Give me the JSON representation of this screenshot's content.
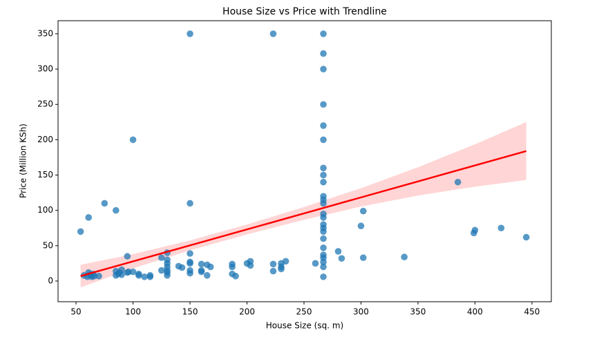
{
  "chart_data": {
    "type": "scatter",
    "title": "House Size vs Price with Trendline",
    "xlabel": "House Size (sq. m)",
    "ylabel": "Price (Million KSh)",
    "color": "#1f77b4",
    "x": [
      54,
      57,
      60,
      61,
      61,
      62,
      63,
      64,
      65,
      66,
      70,
      75,
      85,
      85,
      85,
      87,
      88,
      90,
      90,
      95,
      95,
      96,
      100,
      100,
      105,
      105,
      110,
      115,
      115,
      125,
      125,
      130,
      130,
      130,
      130,
      130,
      130,
      130,
      140,
      143,
      150,
      150,
      150,
      150,
      150,
      150,
      150,
      160,
      160,
      160,
      165,
      165,
      168,
      187,
      187,
      187,
      190,
      200,
      203,
      203,
      223,
      223,
      223,
      230,
      230,
      230,
      234,
      260,
      267,
      267,
      267,
      267,
      267,
      267,
      267,
      267,
      267,
      267,
      267,
      267,
      267,
      267,
      267,
      267,
      267,
      267,
      267,
      267,
      267,
      267,
      267,
      267,
      280,
      283,
      300,
      302,
      302,
      338,
      385,
      399,
      400,
      423,
      445
    ],
    "values": [
      70,
      8,
      6,
      12,
      90,
      9,
      8,
      6,
      10,
      7,
      7,
      110,
      100,
      8,
      14,
      10,
      12,
      9,
      16,
      35,
      12,
      13,
      200,
      13,
      10,
      8,
      6,
      8,
      6,
      33,
      15,
      40,
      30,
      25,
      20,
      15,
      12,
      8,
      21,
      19,
      350,
      110,
      39,
      27,
      25,
      15,
      11,
      24,
      15,
      13,
      23,
      8,
      20,
      24,
      20,
      10,
      7,
      25,
      28,
      22,
      350,
      24,
      14,
      25,
      20,
      17,
      28,
      25,
      350,
      322,
      300,
      250,
      220,
      200,
      160,
      150,
      140,
      115,
      120,
      110,
      95,
      90,
      80,
      75,
      70,
      60,
      47,
      37,
      33,
      27,
      20,
      6,
      42,
      32,
      78,
      99,
      33,
      34,
      140,
      68,
      72,
      75,
      62
    ],
    "trendline": {
      "color": "#ff0000",
      "x": [
        54,
        445
      ],
      "values": [
        7,
        184
      ]
    },
    "band": {
      "color": "#ffb3b3",
      "x": [
        54,
        100,
        150,
        200,
        250,
        300,
        350,
        400,
        445
      ],
      "lower": [
        -9,
        18,
        43.5,
        66,
        86.7,
        105.4,
        121,
        133.6,
        143
      ],
      "upper": [
        23,
        38,
        57.5,
        80,
        104.7,
        131.4,
        161,
        193.6,
        225
      ]
    },
    "xlim": [
      34.2,
      467
    ],
    "ylim": [
      -29.3,
      368.5
    ],
    "xticks": [
      50,
      100,
      150,
      200,
      250,
      300,
      350,
      400,
      450
    ],
    "yticks": [
      0,
      50,
      100,
      150,
      200,
      250,
      300,
      350
    ]
  }
}
